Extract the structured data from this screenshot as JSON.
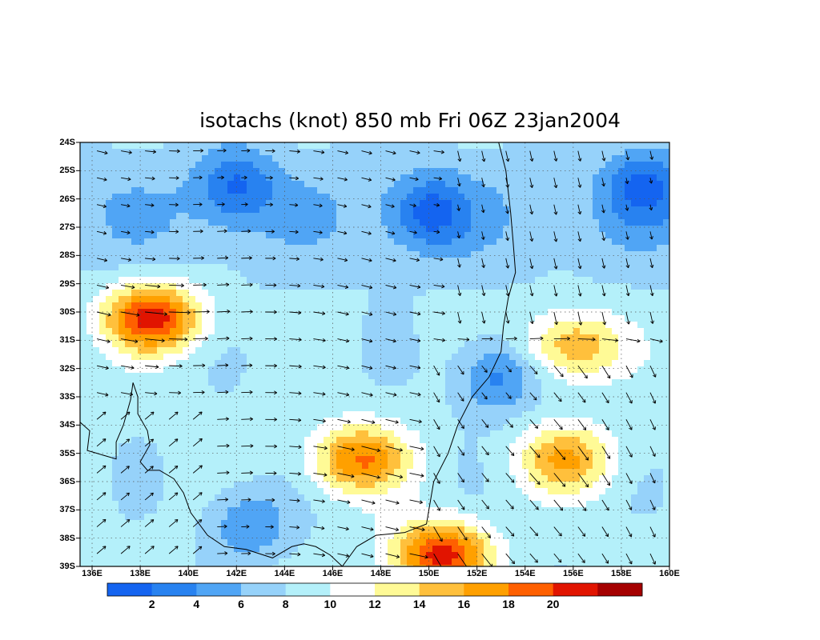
{
  "title": "isotachs (knot) 850 mb Fri 06Z 23jan2004",
  "latitudes": [
    "24S",
    "25S",
    "26S",
    "27S",
    "28S",
    "29S",
    "30S",
    "31S",
    "32S",
    "33S",
    "34S",
    "35S",
    "36S",
    "37S",
    "38S",
    "39S"
  ],
  "longitudes": [
    "136E",
    "138E",
    "140E",
    "142E",
    "144E",
    "146E",
    "148E",
    "150E",
    "152E",
    "154E",
    "156E",
    "158E",
    "160E"
  ],
  "colorbar": {
    "labels": [
      "2",
      "4",
      "6",
      "8",
      "10",
      "12",
      "14",
      "16",
      "18",
      "20"
    ],
    "colors": [
      "#1464f0",
      "#2882f0",
      "#50a5f5",
      "#96d2fa",
      "#b4f0fa",
      "#ffffff",
      "#fffa96",
      "#ffc03c",
      "#ffa000",
      "#ff6000",
      "#e11400",
      "#a50000"
    ]
  },
  "map": {
    "lon_range": [
      135.5,
      160
    ],
    "lat_range": [
      -39,
      -24
    ],
    "grid": "dotted every 2 degrees",
    "wind_max_centers": [
      {
        "lat": -30.2,
        "lon": 138.5,
        "speed": 21
      },
      {
        "lat": -38.6,
        "lon": 150.5,
        "speed": 21
      },
      {
        "lat": -35.2,
        "lon": 147.1,
        "speed": 18
      },
      {
        "lat": -35.2,
        "lon": 155.7,
        "speed": 16
      },
      {
        "lat": -31.2,
        "lon": 156.0,
        "speed": 16
      }
    ],
    "wind_min_centers": [
      {
        "lat": -26.5,
        "lon": 150.0,
        "speed": 3
      },
      {
        "lat": -25.5,
        "lon": 142.0,
        "speed": 3
      },
      {
        "lat": -37.5,
        "lon": 142.5,
        "speed": 4
      },
      {
        "lat": -32.3,
        "lon": 152.8,
        "speed": 3
      },
      {
        "lat": -25.5,
        "lon": 159.0,
        "speed": 3
      }
    ]
  }
}
